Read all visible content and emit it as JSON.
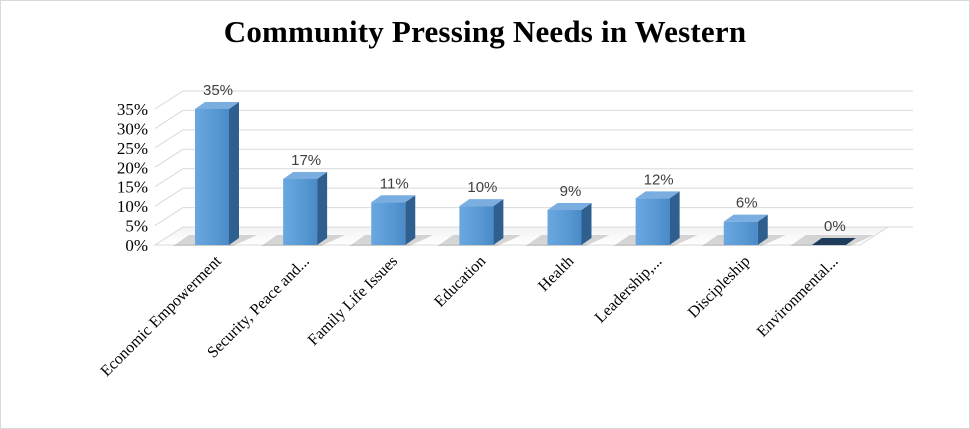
{
  "chart_data": {
    "type": "bar",
    "title": "Community Pressing Needs in Western",
    "categories": [
      "Economic Empowerment",
      "Security, Peace and...",
      "Family Life Issues",
      "Education",
      "Health",
      "Leadership,...",
      "Discipleship",
      "Environmental..."
    ],
    "values": [
      35,
      17,
      11,
      10,
      9,
      12,
      6,
      0
    ],
    "data_labels": [
      "35%",
      "17%",
      "11%",
      "10%",
      "9%",
      "12%",
      "6%",
      "0%"
    ],
    "y_ticks": [
      "0%",
      "5%",
      "10%",
      "15%",
      "20%",
      "25%",
      "30%",
      "35%"
    ],
    "ylim": [
      0,
      35
    ],
    "xlabel": "",
    "ylabel": "",
    "grid": true,
    "legend": "none",
    "style": "3d-column",
    "colors": {
      "bar_front": "#5b9bd5",
      "bar_side": "#2e5f8f",
      "bar_top": "#7aaee0",
      "zero_bar": "#1f3b5c",
      "grid": "#d9d9d9"
    }
  }
}
